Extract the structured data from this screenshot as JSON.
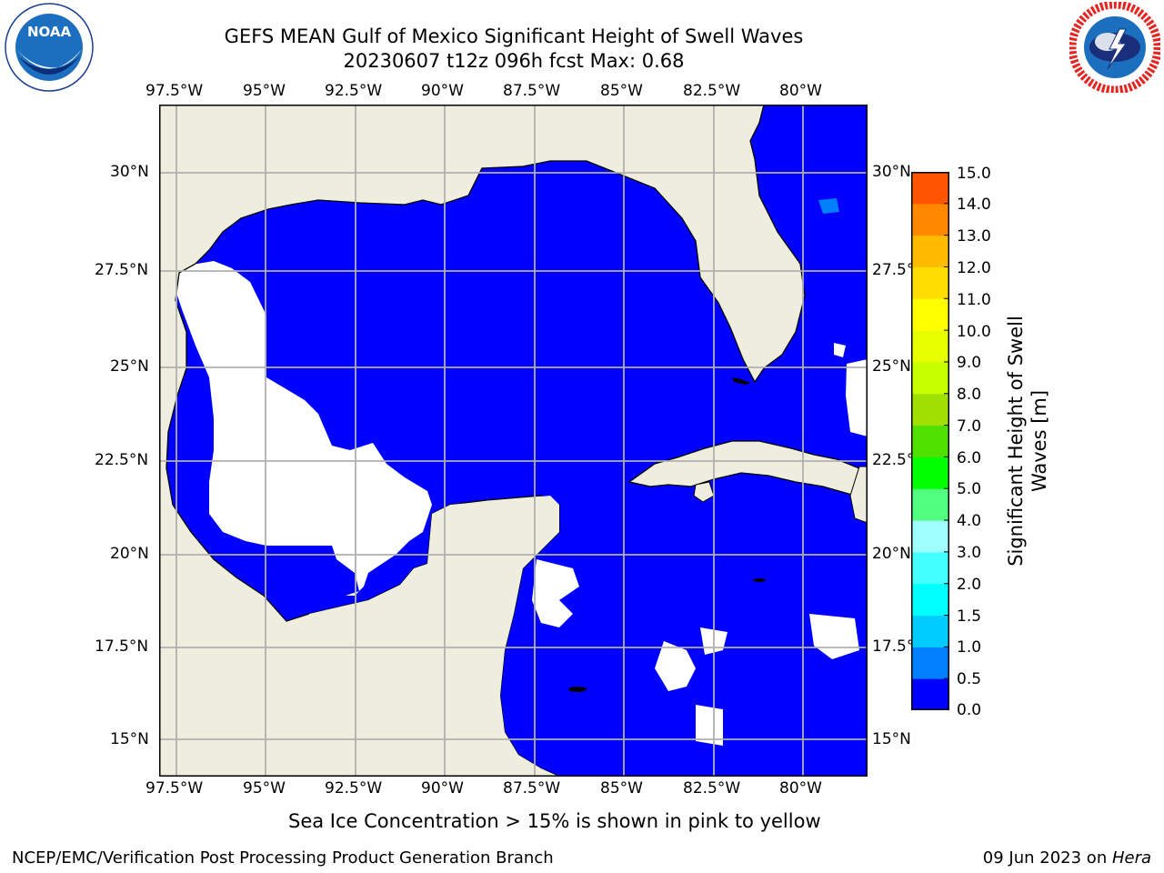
{
  "title": {
    "line1": "GEFS MEAN Gulf of Mexico Significant Height of Swell Waves",
    "line2": "20230607 t12z 096h fcst   Max: 0.68"
  },
  "logos": {
    "left": "NOAA",
    "left_ring": "NATIONAL OCEANIC AND ATMOSPHERIC ADMINISTRATION • U.S. DEPARTMENT OF COMMERCE",
    "right_ring": "NATIONAL WEATHER SERVICE"
  },
  "map": {
    "lon_labels": [
      "97.5°W",
      "95°W",
      "92.5°W",
      "90°W",
      "87.5°W",
      "85°W",
      "82.5°W",
      "80°W"
    ],
    "lat_labels": [
      "30°N",
      "27.5°N",
      "25°N",
      "22.5°N",
      "20°N",
      "17.5°N",
      "15°N"
    ],
    "extent": {
      "lon": [
        -98.0,
        -80.25
      ],
      "lat": [
        14.0,
        31.8
      ]
    },
    "colors": {
      "land": "#eeedde",
      "ocean_low": "#0000ff",
      "ocean_mid": "#0080ff",
      "grid": "#b0b0b0",
      "coast": "#000000"
    }
  },
  "colorbar": {
    "label_line1": "Significant Height of Swell",
    "label_line2": "Waves [m]",
    "levels": [
      "0.0",
      "0.5",
      "1.0",
      "1.5",
      "2.0",
      "3.0",
      "4.0",
      "5.0",
      "6.0",
      "7.0",
      "8.0",
      "9.0",
      "10.0",
      "11.0",
      "12.0",
      "13.0",
      "14.0",
      "15.0"
    ],
    "colors": [
      "#0000ff",
      "#0080ff",
      "#00ccff",
      "#00ffff",
      "#44ffff",
      "#a0ffff",
      "#50ff80",
      "#00ff00",
      "#50e000",
      "#a0e000",
      "#c8ff00",
      "#e8ff00",
      "#ffff00",
      "#ffdd00",
      "#ffbb00",
      "#ff8800",
      "#ff5500",
      "#ff2200",
      "#ff0000"
    ]
  },
  "note": "Sea Ice Concentration > 15% is shown in pink to yellow",
  "footer": {
    "left": "NCEP/EMC/Verification Post Processing Product Generation Branch",
    "right_prefix": "09 Jun 2023 on ",
    "right_host": "Hera"
  }
}
